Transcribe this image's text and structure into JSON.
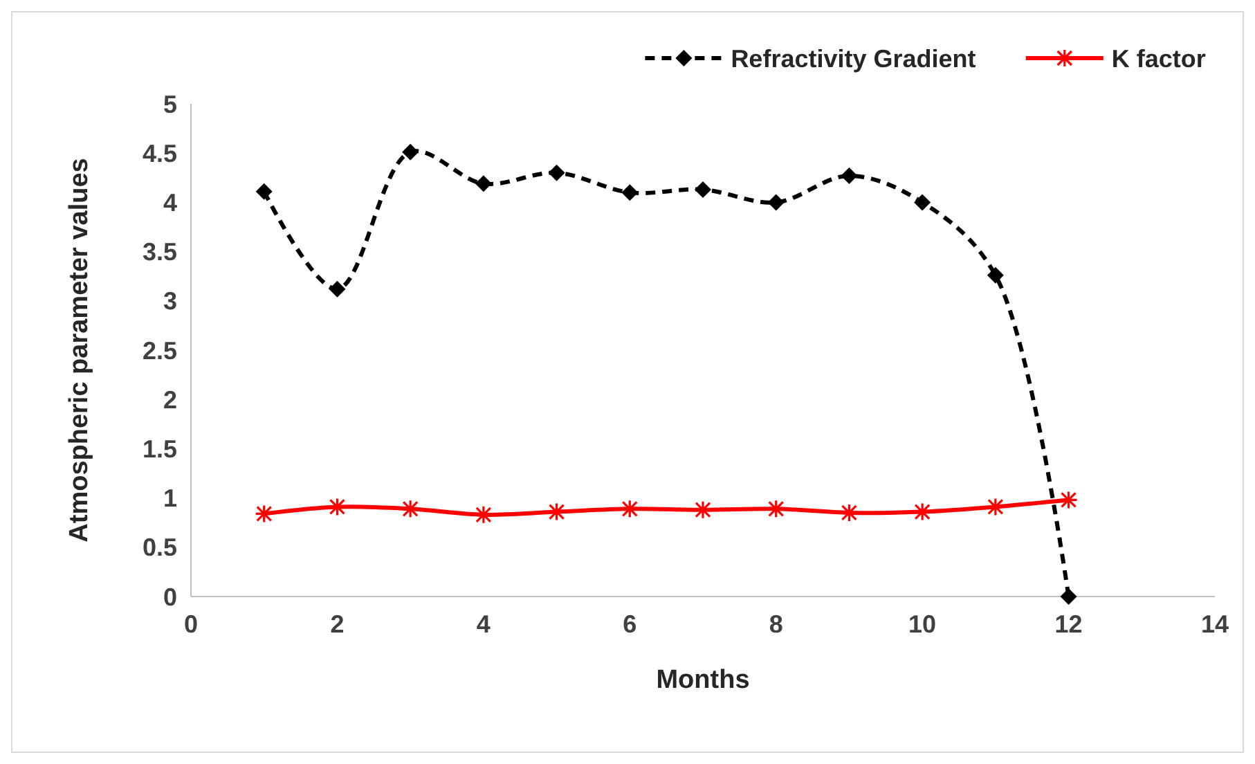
{
  "chart_data": {
    "type": "line",
    "xlabel": "Months",
    "ylabel": "Atmospheric parameter values",
    "x": [
      1,
      2,
      3,
      4,
      5,
      6,
      7,
      8,
      9,
      10,
      11,
      12
    ],
    "series": [
      {
        "name": "Refractivity Gradient",
        "color": "#000000",
        "values": [
          4.11,
          3.12,
          4.51,
          4.19,
          4.3,
          4.1,
          4.13,
          4.0,
          4.27,
          4.0,
          3.26,
          0
        ],
        "marker": "diamond",
        "line_style": "dashed"
      },
      {
        "name": "K factor",
        "color": "#ff0000",
        "values": [
          0.84,
          0.91,
          0.89,
          0.83,
          0.86,
          0.89,
          0.88,
          0.89,
          0.85,
          0.86,
          0.91,
          0.98
        ],
        "marker": "cross",
        "line_style": "solid"
      }
    ],
    "xlim": [
      0,
      14
    ],
    "xticks": [
      0,
      2,
      4,
      6,
      8,
      10,
      12,
      14
    ],
    "ylim": [
      0,
      5
    ],
    "yticks": [
      0,
      0.5,
      1,
      1.5,
      2,
      2.5,
      3,
      3.5,
      4,
      4.5,
      5
    ],
    "grid": false,
    "legend": "top right"
  }
}
